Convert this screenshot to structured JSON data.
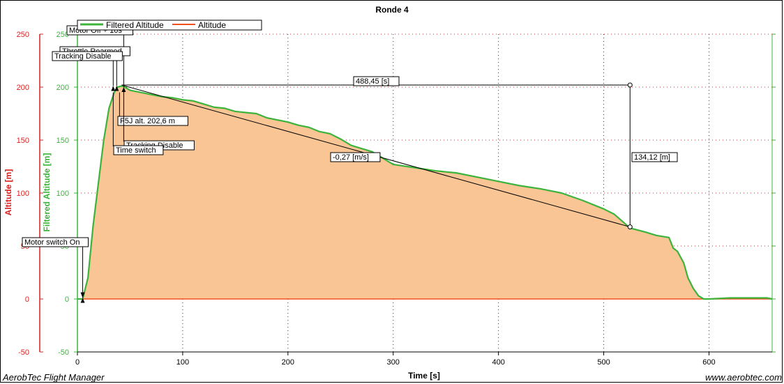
{
  "chart_data": {
    "type": "area",
    "title": "Ronde 4",
    "xlabel": "Time [s]",
    "ylabel_left_outer": "Altitude [m]",
    "ylabel_left_inner": "Filtered Altitude [m]",
    "xlim": [
      0,
      660
    ],
    "ylim": [
      -50,
      250
    ],
    "x_ticks": [
      0,
      100,
      200,
      300,
      400,
      500,
      600
    ],
    "y_ticks": [
      -50,
      0,
      50,
      100,
      150,
      200,
      250
    ],
    "grid": true,
    "legend_position": "top-left",
    "series": [
      {
        "name": "Filtered Altitude",
        "color": "#3cb43c",
        "points": [
          [
            0,
            0
          ],
          [
            5,
            0
          ],
          [
            10,
            20
          ],
          [
            15,
            70
          ],
          [
            20,
            110
          ],
          [
            25,
            150
          ],
          [
            30,
            180
          ],
          [
            35,
            195
          ],
          [
            38,
            200
          ],
          [
            42,
            201
          ],
          [
            45,
            200
          ],
          [
            50,
            197
          ],
          [
            60,
            195
          ],
          [
            70,
            193
          ],
          [
            80,
            191
          ],
          [
            90,
            190
          ],
          [
            100,
            188
          ],
          [
            110,
            187
          ],
          [
            120,
            184
          ],
          [
            130,
            181
          ],
          [
            140,
            180
          ],
          [
            150,
            177
          ],
          [
            160,
            176
          ],
          [
            170,
            175
          ],
          [
            180,
            171
          ],
          [
            190,
            169
          ],
          [
            200,
            167
          ],
          [
            210,
            164
          ],
          [
            220,
            162
          ],
          [
            230,
            158
          ],
          [
            240,
            156
          ],
          [
            250,
            151
          ],
          [
            260,
            145
          ],
          [
            270,
            142
          ],
          [
            280,
            139
          ],
          [
            290,
            133
          ],
          [
            300,
            127
          ],
          [
            320,
            124
          ],
          [
            340,
            121
          ],
          [
            360,
            119
          ],
          [
            380,
            115
          ],
          [
            400,
            111
          ],
          [
            420,
            107
          ],
          [
            440,
            104
          ],
          [
            460,
            100
          ],
          [
            480,
            93
          ],
          [
            500,
            85
          ],
          [
            510,
            80
          ],
          [
            525,
            67
          ],
          [
            540,
            63
          ],
          [
            550,
            60
          ],
          [
            562,
            58
          ],
          [
            566,
            48
          ],
          [
            570,
            45
          ],
          [
            576,
            34
          ],
          [
            580,
            20
          ],
          [
            585,
            10
          ],
          [
            590,
            3
          ],
          [
            595,
            0
          ],
          [
            600,
            0
          ],
          [
            620,
            1
          ],
          [
            640,
            1
          ],
          [
            655,
            1
          ],
          [
            660,
            0
          ]
        ]
      },
      {
        "name": "Altitude",
        "color": "#f0501e",
        "points": [
          [
            0,
            0
          ],
          [
            660,
            0
          ]
        ]
      }
    ],
    "fill_color": "#f9c595",
    "annotations": [
      {
        "label": "Motor switch On",
        "x": 5
      },
      {
        "label": "Motor Off + 10s",
        "x": 44
      },
      {
        "label": "Throttle Rearmed",
        "x": 36
      },
      {
        "label": "Tracking Disable",
        "x": 34
      },
      {
        "label": "F5J alt. 202,6 m",
        "x": 38
      },
      {
        "label": "Time switch",
        "x": 34
      },
      {
        "label": "Tracking Disable",
        "x": 44
      }
    ],
    "measurements": {
      "duration_label": "488,45 [s]",
      "height_label": "134,12 [m]",
      "slope_label": "-0,27 [m/s]"
    }
  },
  "footer": {
    "left": "AerobTec Flight Manager",
    "right": "www.aerobtec.com"
  }
}
